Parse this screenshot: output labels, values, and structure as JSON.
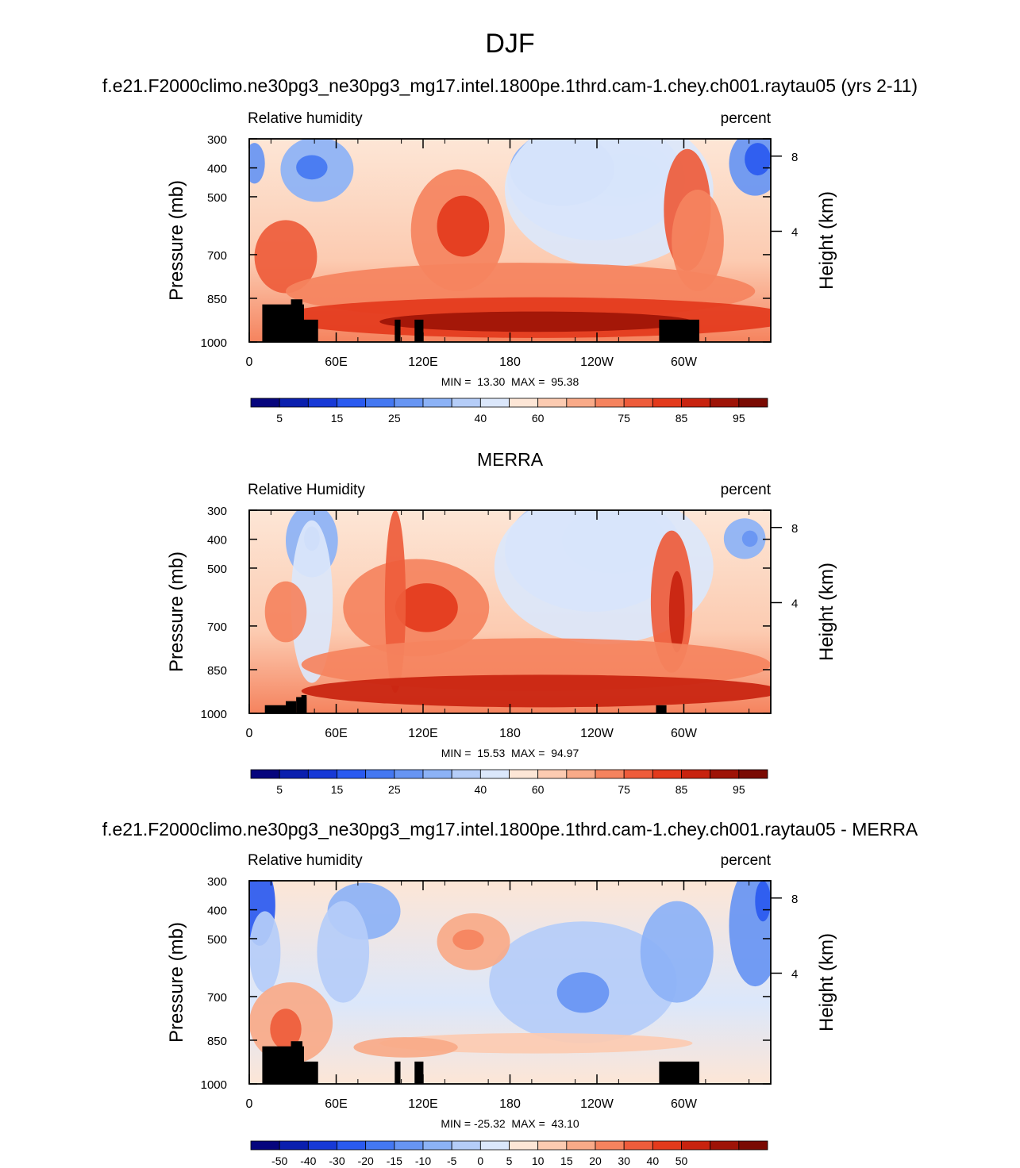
{
  "figure": {
    "title": "DJF"
  },
  "colors": {
    "rh_scale": [
      "#06057d",
      "#0a1fae",
      "#1739d6",
      "#2a5af0",
      "#4478f2",
      "#6795f3",
      "#8cb2f6",
      "#b5cdf8",
      "#dbe7fb",
      "#fde6d6",
      "#fccbb1",
      "#f9aa88",
      "#f5835e",
      "#ee5c3b",
      "#e33a1c",
      "#c8230f",
      "#9e1307",
      "#7a0a03"
    ],
    "diff_scale": [
      "#06057d",
      "#0a1fae",
      "#1739d6",
      "#2a5af0",
      "#4478f2",
      "#6795f3",
      "#8cb2f6",
      "#b5cdf8",
      "#dbe7fb",
      "#fde6d6",
      "#fccbb1",
      "#f9aa88",
      "#f5835e",
      "#ee5c3b",
      "#e33a1c",
      "#c8230f",
      "#9e1307",
      "#7a0a03"
    ],
    "topography": "#000000"
  },
  "chart_data": [
    {
      "type": "heatmap",
      "panel_title": "f.e21.F2000climo.ne30pg3_ne30pg3_mg17.intel.1800pe.1thrd.cam-1.chey.ch001.raytau05 (yrs 2-11)",
      "field_label": "Relative humidity",
      "units": "percent",
      "ylabel": "Pressure (mb)",
      "ylabel_right": "Height (km)",
      "y_ticks": [
        "300",
        "400",
        "500",
        "700",
        "850",
        "1000"
      ],
      "y_ticks_right": [
        "8",
        "4"
      ],
      "x_ticks": [
        "0",
        "60E",
        "120E",
        "180",
        "120W",
        "60W"
      ],
      "min_max": "MIN =  13.30  MAX =  95.38",
      "colorbar_labels": [
        "5",
        "15",
        "25",
        "40",
        "60",
        "75",
        "85",
        "95"
      ],
      "contour_levels": [
        5,
        10,
        15,
        20,
        25,
        30,
        35,
        40,
        50,
        60,
        65,
        70,
        75,
        80,
        85,
        90,
        95
      ]
    },
    {
      "type": "heatmap",
      "panel_title": "MERRA",
      "field_label": "Relative Humidity",
      "units": "percent",
      "ylabel": "Pressure (mb)",
      "ylabel_right": "Height (km)",
      "y_ticks": [
        "300",
        "400",
        "500",
        "700",
        "850",
        "1000"
      ],
      "y_ticks_right": [
        "8",
        "4"
      ],
      "x_ticks": [
        "0",
        "60E",
        "120E",
        "180",
        "120W",
        "60W"
      ],
      "min_max": "MIN =  15.53  MAX =  94.97",
      "colorbar_labels": [
        "5",
        "15",
        "25",
        "40",
        "60",
        "75",
        "85",
        "95"
      ],
      "contour_levels": [
        5,
        10,
        15,
        20,
        25,
        30,
        35,
        40,
        50,
        60,
        65,
        70,
        75,
        80,
        85,
        90,
        95
      ]
    },
    {
      "type": "heatmap",
      "panel_title": "f.e21.F2000climo.ne30pg3_ne30pg3_mg17.intel.1800pe.1thrd.cam-1.chey.ch001.raytau05 - MERRA",
      "field_label": "Relative humidity",
      "units": "percent",
      "ylabel": "Pressure (mb)",
      "ylabel_right": "Height (km)",
      "y_ticks": [
        "300",
        "400",
        "500",
        "700",
        "850",
        "1000"
      ],
      "y_ticks_right": [
        "8",
        "4"
      ],
      "x_ticks": [
        "0",
        "60E",
        "120E",
        "180",
        "120W",
        "60W"
      ],
      "min_max": "MIN = -25.32  MAX =  43.10",
      "colorbar_labels": [
        "-50",
        "-40",
        "-30",
        "-20",
        "-15",
        "-10",
        "-5",
        "0",
        "5",
        "10",
        "15",
        "20",
        "30",
        "40",
        "50"
      ],
      "contour_levels": [
        -50,
        -40,
        -30,
        -20,
        -15,
        -10,
        -5,
        0,
        5,
        10,
        15,
        20,
        30,
        40,
        50
      ]
    }
  ]
}
